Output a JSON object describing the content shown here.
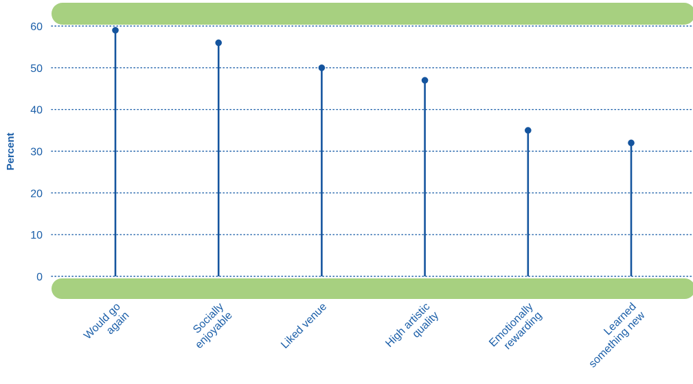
{
  "chart_data": {
    "type": "lollipop",
    "title": "",
    "xlabel": "",
    "ylabel": "Percent",
    "ylim": [
      0,
      60
    ],
    "yticks": [
      "0",
      "10",
      "20",
      "30",
      "40",
      "50",
      "60"
    ],
    "grid": true,
    "categories": [
      [
        "Would go",
        "again"
      ],
      [
        "Socially",
        "enjoyable"
      ],
      [
        "Liked venue"
      ],
      [
        "High artistic",
        "quality"
      ],
      [
        "Emotionally",
        "rewarding"
      ],
      [
        "Learned",
        "something new"
      ]
    ],
    "values": [
      59,
      56,
      50,
      47,
      35,
      32
    ]
  },
  "colors": {
    "band": "#a7d080",
    "text": "#1a5ea8",
    "stem": "#14549e",
    "grid": "#1a5ea8"
  }
}
